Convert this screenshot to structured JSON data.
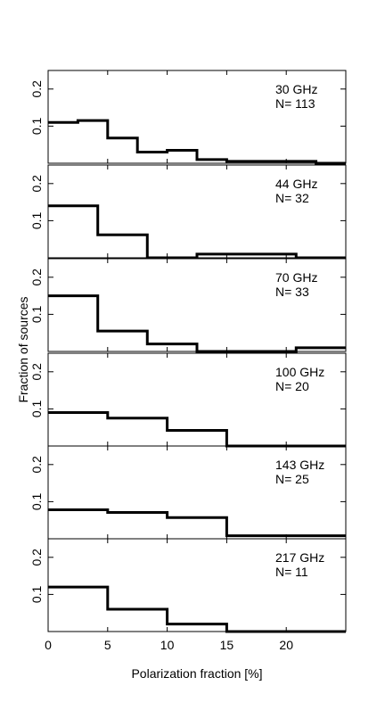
{
  "chart_data": {
    "type": "histogram",
    "xlabel": "Polarization fraction [%]",
    "ylabel": "Fraction of sources",
    "xlim": [
      0,
      25
    ],
    "ylim": [
      0,
      0.25
    ],
    "xticks": [
      0,
      5,
      10,
      15,
      20
    ],
    "yticks": [
      0.1,
      0.2
    ],
    "panels": [
      {
        "label": "30 GHz",
        "n_label": "N= 113",
        "edges": [
          0,
          2.5,
          5,
          7.5,
          10,
          12.5,
          15,
          17.5,
          20,
          22.5,
          25
        ],
        "values": [
          0.11,
          0.115,
          0.068,
          0.03,
          0.035,
          0.01,
          0.005,
          0.005,
          0.005,
          0.0
        ]
      },
      {
        "label": "44 GHz",
        "n_label": "N= 32",
        "edges": [
          0,
          4.17,
          8.33,
          12.5,
          16.67,
          20.83,
          25
        ],
        "values": [
          0.14,
          0.062,
          0.0,
          0.01,
          0.01,
          0.0
        ]
      },
      {
        "label": "70 GHz",
        "n_label": "N= 33",
        "edges": [
          0,
          4.17,
          8.33,
          12.5,
          16.67,
          20.83,
          25
        ],
        "values": [
          0.15,
          0.055,
          0.02,
          0.0,
          0.0,
          0.01
        ]
      },
      {
        "label": "100 GHz",
        "n_label": "N= 20",
        "edges": [
          0,
          5,
          10,
          15,
          20,
          25
        ],
        "values": [
          0.09,
          0.075,
          0.042,
          0.0,
          0.0
        ]
      },
      {
        "label": "143 GHz",
        "n_label": "N= 25",
        "edges": [
          0,
          5,
          10,
          15,
          20,
          25
        ],
        "values": [
          0.078,
          0.071,
          0.057,
          0.008,
          0.008
        ]
      },
      {
        "label": "217 GHz",
        "n_label": "N= 11",
        "edges": [
          0,
          5,
          10,
          15,
          20,
          25
        ],
        "values": [
          0.12,
          0.06,
          0.02,
          0.0,
          0.0
        ]
      }
    ]
  }
}
